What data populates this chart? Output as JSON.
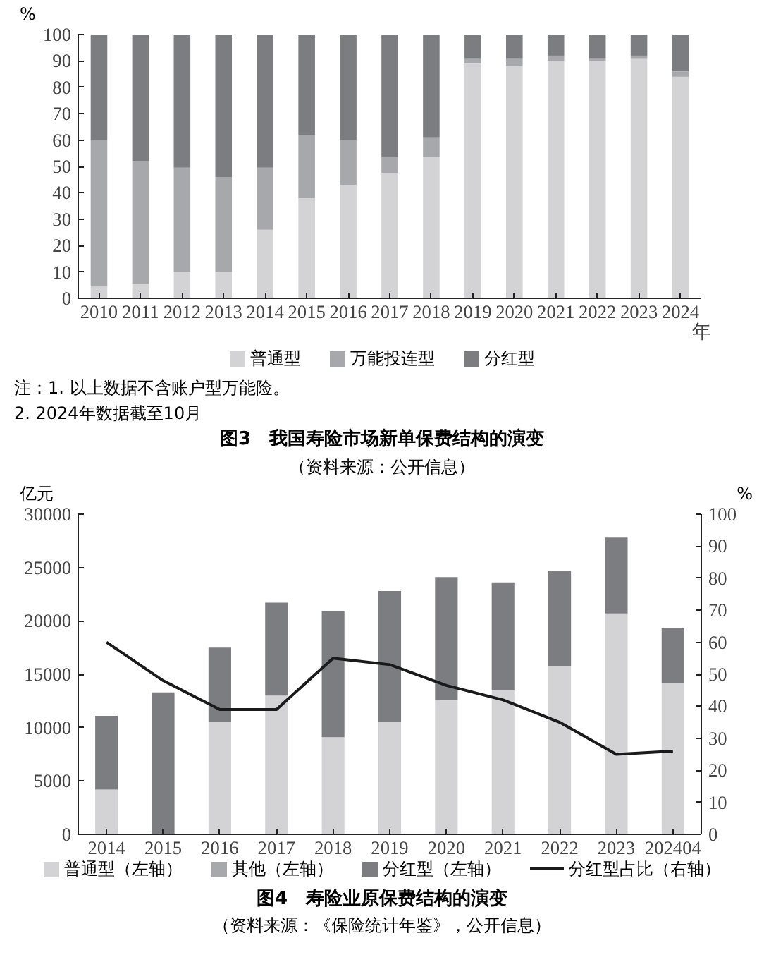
{
  "chart_data": [
    {
      "type": "bar",
      "stacked": true,
      "title": "图3　我国寿险市场新单保费结构的演变",
      "subtitle": "（资料来源：公开信息）",
      "ylabel": "%",
      "xlabel": "年",
      "categories": [
        "2010",
        "2011",
        "2012",
        "2013",
        "2014",
        "2015",
        "2016",
        "2017",
        "2018",
        "2019",
        "2020",
        "2021",
        "2022",
        "2023",
        "2024"
      ],
      "series": [
        {
          "name": "普通型",
          "color": "#d3d3d5",
          "values": [
            4.5,
            5.5,
            10,
            10,
            26,
            38,
            43,
            47.5,
            53.5,
            89,
            88,
            90,
            90,
            91,
            84
          ]
        },
        {
          "name": "万能投连型",
          "color": "#a7a8ab",
          "values": [
            55.5,
            46.5,
            39.5,
            36,
            23.5,
            24,
            17,
            6,
            7.5,
            2,
            3,
            2,
            1,
            1,
            2
          ]
        },
        {
          "name": "分红型",
          "color": "#7c7d80",
          "values": [
            40,
            48,
            50.5,
            54,
            50.5,
            38,
            40,
            46.5,
            39,
            9,
            9,
            8,
            9,
            8,
            14
          ]
        }
      ],
      "ylim": [
        0,
        100
      ],
      "yticks": [
        0,
        10,
        20,
        30,
        40,
        50,
        60,
        70,
        80,
        90,
        100
      ],
      "grid": false,
      "legend": "bottom",
      "annotations": [
        "注：1. 以上数据不含账户型万能险。",
        "2. 2024年数据截至10月"
      ]
    },
    {
      "type": "bar",
      "stacked": true,
      "title": "图4　寿险业原保费结构的演变",
      "subtitle": "（资料来源：《保险统计年鉴》，公开信息）",
      "ylabel": "亿元",
      "y2label": "%",
      "categories": [
        "2014",
        "2015",
        "2016",
        "2017",
        "2018",
        "2019",
        "2020",
        "2021",
        "2022",
        "2023",
        "202404"
      ],
      "series": [
        {
          "name": "普通型（左轴）",
          "color": "#d3d3d5",
          "values": [
            4200,
            0,
            10500,
            13000,
            9100,
            10500,
            12600,
            13500,
            15800,
            20700,
            14200
          ]
        },
        {
          "name": "其他（左轴）",
          "color": "#a7a8ab",
          "values": [
            0,
            0,
            0,
            0,
            0,
            0,
            0,
            0,
            0,
            0,
            0
          ]
        },
        {
          "name": "分红型（左轴）",
          "color": "#7c7d80",
          "values": [
            6900,
            13300,
            7000,
            8700,
            11800,
            12300,
            11500,
            10100,
            8900,
            7100,
            5100
          ]
        },
        {
          "name": "分红型占比（右轴）",
          "type": "line",
          "axis": "y2",
          "color": "#1a1a1a",
          "values": [
            60,
            48,
            39,
            39,
            55,
            53,
            46.5,
            42,
            35,
            25,
            26
          ]
        }
      ],
      "ylim": [
        0,
        30000
      ],
      "yticks": [
        0,
        5000,
        10000,
        15000,
        20000,
        25000,
        30000
      ],
      "y2lim": [
        0,
        100
      ],
      "y2ticks": [
        0,
        10,
        20,
        30,
        40,
        50,
        60,
        70,
        80,
        90,
        100
      ],
      "grid": false,
      "legend": "bottom",
      "marker": "none",
      "line_style": "solid"
    }
  ]
}
